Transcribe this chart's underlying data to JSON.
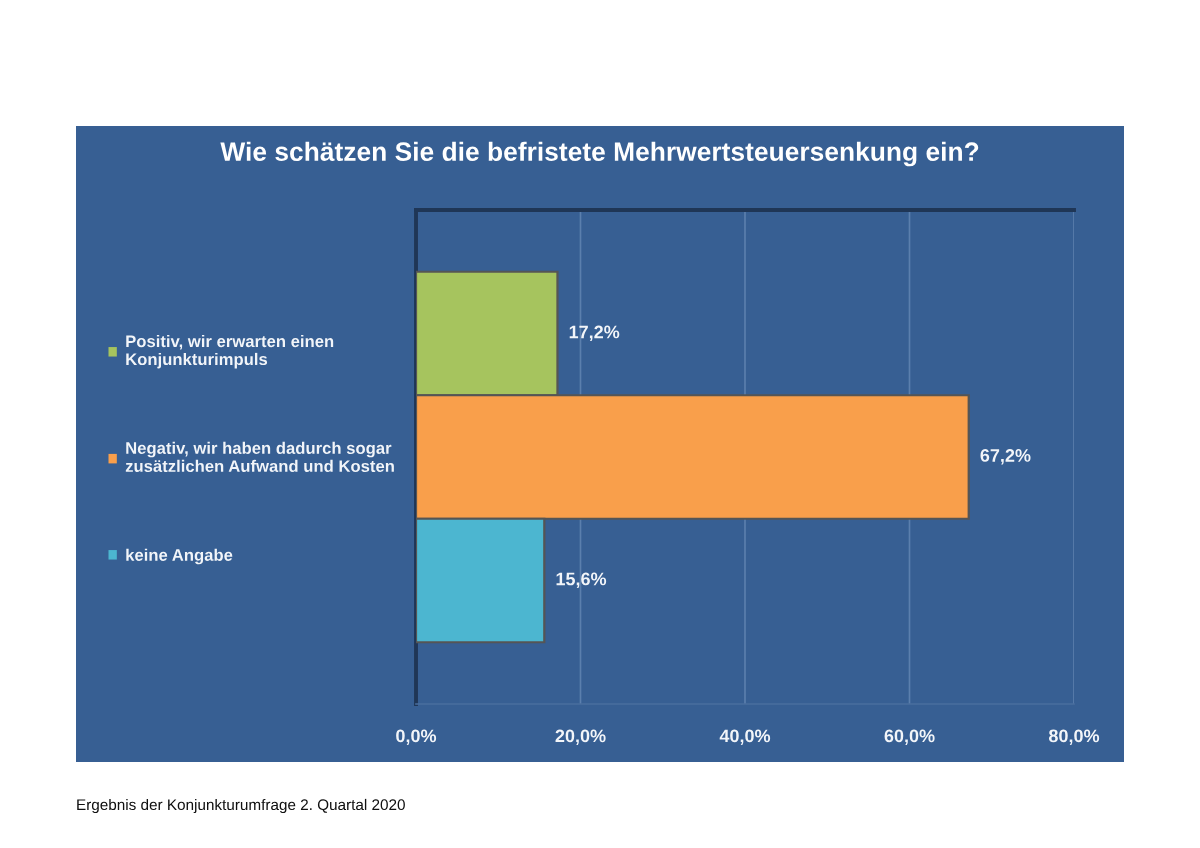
{
  "chart_data": {
    "type": "bar",
    "orientation": "horizontal",
    "title": "Wie schätzen Sie die befristete Mehrwertsteuersenkung ein?",
    "categories": [
      null
    ],
    "series": [
      {
        "name": "Positiv, wir erwarten einen\nKonjunkturimpuls",
        "color": "#a6c45e",
        "values": [
          17.2
        ],
        "value_labels": [
          "17,2%"
        ]
      },
      {
        "name": "Negativ, wir haben dadurch sogar\nzusätzlichen Aufwand und Kosten",
        "color": "#f99f4b",
        "values": [
          67.2
        ],
        "value_labels": [
          "67,2%"
        ]
      },
      {
        "name": "keine Angabe",
        "color": "#4cb6d0",
        "values": [
          15.6
        ],
        "value_labels": [
          "15,6%"
        ]
      }
    ],
    "xlim": [
      0,
      80
    ],
    "xticks": [
      {
        "value": 0,
        "label": "0,0%"
      },
      {
        "value": 20,
        "label": "20,0%"
      },
      {
        "value": 40,
        "label": "40,0%"
      },
      {
        "value": 60,
        "label": "60,0%"
      },
      {
        "value": 80,
        "label": "80,0%"
      }
    ],
    "grid": "x",
    "legend": "left",
    "tick_labels": "x",
    "annotations": [
      "Ergebnis der Konjunkturumfrage 2. Quartal 2020"
    ]
  }
}
